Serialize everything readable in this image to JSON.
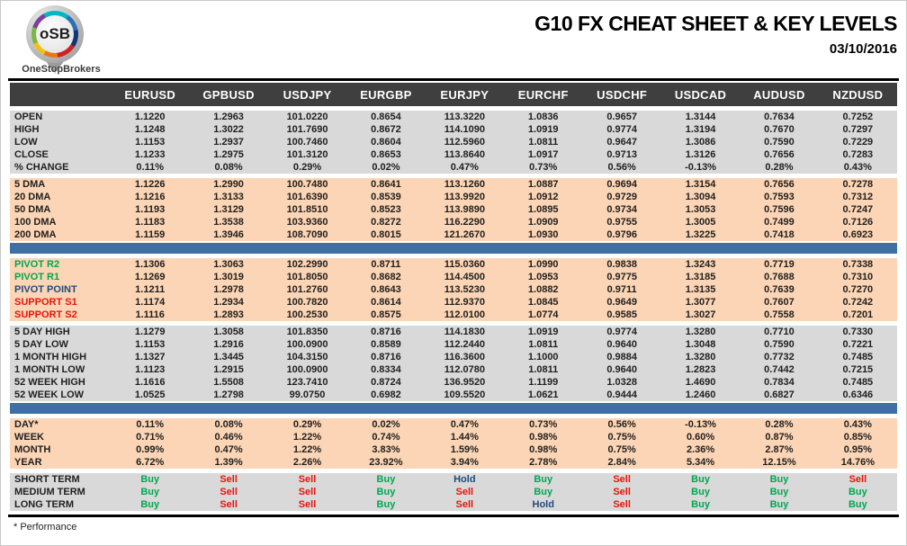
{
  "logo": {
    "monogram": "oSB",
    "brand": "OneStopBrokers"
  },
  "header": {
    "title": "G10 FX CHEAT SHEET & KEY LEVELS",
    "date": "03/10/2016"
  },
  "footnote": "* Performance",
  "colors": {
    "header_bg": "#3F3F3F",
    "section_gray": "#D9D9D9",
    "section_peach": "#FBD5B5",
    "separator_blue": "#406FA4",
    "buy_green": "#00A651",
    "sell_red": "#E8130C",
    "hold_navy": "#1F497D",
    "resistance_green": "#00A651",
    "support_red": "#E8130C",
    "pivot_navy": "#1F497D"
  },
  "table": {
    "columns": [
      "EURUSD",
      "GPBUSD",
      "USDJPY",
      "EURGBP",
      "EURJPY",
      "EURCHF",
      "USDCHF",
      "USDCAD",
      "AUDUSD",
      "NZDUSD"
    ],
    "sections": [
      {
        "name": "ohlc",
        "bg": "gray",
        "rows": [
          {
            "label": "OPEN",
            "values": [
              "1.1220",
              "1.2963",
              "101.0220",
              "0.8654",
              "113.3220",
              "1.0836",
              "0.9657",
              "1.3144",
              "0.7634",
              "0.7252"
            ]
          },
          {
            "label": "HIGH",
            "values": [
              "1.1248",
              "1.3022",
              "101.7690",
              "0.8672",
              "114.1090",
              "1.0919",
              "0.9774",
              "1.3194",
              "0.7670",
              "0.7297"
            ]
          },
          {
            "label": "LOW",
            "values": [
              "1.1153",
              "1.2937",
              "100.7460",
              "0.8604",
              "112.5960",
              "1.0811",
              "0.9647",
              "1.3086",
              "0.7590",
              "0.7229"
            ]
          },
          {
            "label": "CLOSE",
            "values": [
              "1.1233",
              "1.2975",
              "101.3120",
              "0.8653",
              "113.8640",
              "1.0917",
              "0.9713",
              "1.3126",
              "0.7656",
              "0.7283"
            ]
          },
          {
            "label": "% CHANGE",
            "values": [
              "0.11%",
              "0.08%",
              "0.29%",
              "0.02%",
              "0.47%",
              "0.73%",
              "0.56%",
              "-0.13%",
              "0.28%",
              "0.43%"
            ]
          }
        ]
      },
      {
        "name": "dma",
        "bg": "peach",
        "rows": [
          {
            "label": "5 DMA",
            "values": [
              "1.1226",
              "1.2990",
              "100.7480",
              "0.8641",
              "113.1260",
              "1.0887",
              "0.9694",
              "1.3154",
              "0.7656",
              "0.7278"
            ]
          },
          {
            "label": "20 DMA",
            "values": [
              "1.1216",
              "1.3133",
              "101.6390",
              "0.8539",
              "113.9920",
              "1.0912",
              "0.9729",
              "1.3094",
              "0.7593",
              "0.7312"
            ]
          },
          {
            "label": "50 DMA",
            "values": [
              "1.1193",
              "1.3129",
              "101.8510",
              "0.8523",
              "113.9890",
              "1.0895",
              "0.9734",
              "1.3053",
              "0.7596",
              "0.7247"
            ]
          },
          {
            "label": "100 DMA",
            "values": [
              "1.1183",
              "1.3538",
              "103.9360",
              "0.8272",
              "116.2290",
              "1.0909",
              "0.9755",
              "1.3005",
              "0.7499",
              "0.7126"
            ]
          },
          {
            "label": "200 DMA",
            "values": [
              "1.1159",
              "1.3946",
              "108.7090",
              "0.8015",
              "121.2670",
              "1.0930",
              "0.9796",
              "1.3225",
              "0.7418",
              "0.6923"
            ]
          }
        ]
      },
      {
        "name": "separator-1",
        "separator": true
      },
      {
        "name": "pivots",
        "bg": "peach",
        "rows": [
          {
            "label": "PIVOT R2",
            "label_color": "resistance_green",
            "values": [
              "1.1306",
              "1.3063",
              "102.2990",
              "0.8711",
              "115.0360",
              "1.0990",
              "0.9838",
              "1.3243",
              "0.7719",
              "0.7338"
            ]
          },
          {
            "label": "PIVOT R1",
            "label_color": "resistance_green",
            "values": [
              "1.1269",
              "1.3019",
              "101.8050",
              "0.8682",
              "114.4500",
              "1.0953",
              "0.9775",
              "1.3185",
              "0.7688",
              "0.7310"
            ]
          },
          {
            "label": "PIVOT POINT",
            "label_color": "pivot_navy",
            "values": [
              "1.1211",
              "1.2978",
              "101.2760",
              "0.8643",
              "113.5230",
              "1.0882",
              "0.9711",
              "1.3135",
              "0.7639",
              "0.7270"
            ]
          },
          {
            "label": "SUPPORT S1",
            "label_color": "support_red",
            "values": [
              "1.1174",
              "1.2934",
              "100.7820",
              "0.8614",
              "112.9370",
              "1.0845",
              "0.9649",
              "1.3077",
              "0.7607",
              "0.7242"
            ]
          },
          {
            "label": "SUPPORT S2",
            "label_color": "support_red",
            "values": [
              "1.1116",
              "1.2893",
              "100.2530",
              "0.8575",
              "112.0100",
              "1.0774",
              "0.9585",
              "1.3027",
              "0.7558",
              "0.7201"
            ]
          }
        ]
      },
      {
        "name": "ranges",
        "bg": "gray",
        "rows": [
          {
            "label": "5 DAY HIGH",
            "values": [
              "1.1279",
              "1.3058",
              "101.8350",
              "0.8716",
              "114.1830",
              "1.0919",
              "0.9774",
              "1.3280",
              "0.7710",
              "0.7330"
            ]
          },
          {
            "label": "5 DAY LOW",
            "values": [
              "1.1153",
              "1.2916",
              "100.0900",
              "0.8589",
              "112.2440",
              "1.0811",
              "0.9640",
              "1.3048",
              "0.7590",
              "0.7221"
            ]
          },
          {
            "label": "1 MONTH HIGH",
            "values": [
              "1.1327",
              "1.3445",
              "104.3150",
              "0.8716",
              "116.3600",
              "1.1000",
              "0.9884",
              "1.3280",
              "0.7732",
              "0.7485"
            ]
          },
          {
            "label": "1 MONTH LOW",
            "values": [
              "1.1123",
              "1.2915",
              "100.0900",
              "0.8334",
              "112.0780",
              "1.0811",
              "0.9640",
              "1.2823",
              "0.7442",
              "0.7215"
            ]
          },
          {
            "label": "52 WEEK HIGH",
            "values": [
              "1.1616",
              "1.5508",
              "123.7410",
              "0.8724",
              "136.9520",
              "1.1199",
              "1.0328",
              "1.4690",
              "0.7834",
              "0.7485"
            ]
          },
          {
            "label": "52 WEEK LOW",
            "values": [
              "1.0525",
              "1.2798",
              "99.0750",
              "0.6982",
              "109.5520",
              "1.0621",
              "0.9444",
              "1.2460",
              "0.6827",
              "0.6346"
            ]
          }
        ]
      },
      {
        "name": "separator-2",
        "separator": true
      },
      {
        "name": "performance",
        "bg": "peach",
        "rows": [
          {
            "label": "DAY*",
            "values": [
              "0.11%",
              "0.08%",
              "0.29%",
              "0.02%",
              "0.47%",
              "0.73%",
              "0.56%",
              "-0.13%",
              "0.28%",
              "0.43%"
            ]
          },
          {
            "label": "WEEK",
            "values": [
              "0.71%",
              "0.46%",
              "1.22%",
              "0.74%",
              "1.44%",
              "0.98%",
              "0.75%",
              "0.60%",
              "0.87%",
              "0.85%"
            ]
          },
          {
            "label": "MONTH",
            "values": [
              "0.99%",
              "0.47%",
              "1.22%",
              "3.83%",
              "1.59%",
              "0.98%",
              "0.75%",
              "2.36%",
              "2.87%",
              "0.95%"
            ]
          },
          {
            "label": "YEAR",
            "values": [
              "6.72%",
              "1.39%",
              "2.26%",
              "23.92%",
              "3.94%",
              "2.78%",
              "2.84%",
              "5.34%",
              "12.15%",
              "14.76%"
            ]
          }
        ]
      },
      {
        "name": "signals",
        "bg": "gray",
        "signals": true,
        "rows": [
          {
            "label": "SHORT TERM",
            "values": [
              "Buy",
              "Sell",
              "Sell",
              "Buy",
              "Hold",
              "Buy",
              "Sell",
              "Buy",
              "Buy",
              "Sell"
            ]
          },
          {
            "label": "MEDIUM TERM",
            "values": [
              "Buy",
              "Sell",
              "Sell",
              "Buy",
              "Sell",
              "Buy",
              "Sell",
              "Buy",
              "Buy",
              "Buy"
            ]
          },
          {
            "label": "LONG TERM",
            "values": [
              "Buy",
              "Sell",
              "Sell",
              "Buy",
              "Sell",
              "Hold",
              "Sell",
              "Buy",
              "Buy",
              "Buy"
            ]
          }
        ]
      }
    ]
  }
}
